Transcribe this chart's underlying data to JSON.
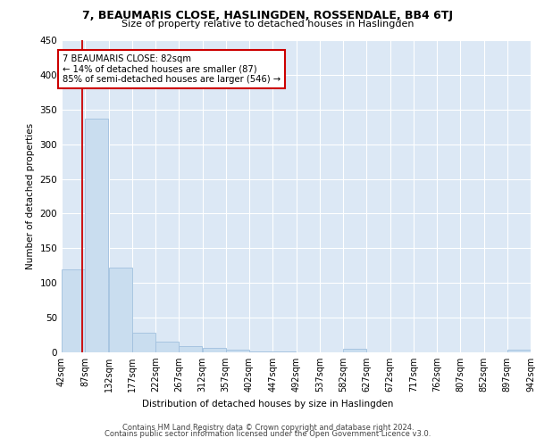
{
  "title": "7, BEAUMARIS CLOSE, HASLINGDEN, ROSSENDALE, BB4 6TJ",
  "subtitle": "Size of property relative to detached houses in Haslingden",
  "xlabel": "Distribution of detached houses by size in Haslingden",
  "ylabel": "Number of detached properties",
  "bar_color": "#c9ddef",
  "bar_edge_color": "#a0c0de",
  "bg_color": "#dce8f5",
  "grid_color": "#ffffff",
  "annotation_text": "7 BEAUMARIS CLOSE: 82sqm\n← 14% of detached houses are smaller (87)\n85% of semi-detached houses are larger (546) →",
  "property_line_x": 82,
  "bin_edges": [
    42,
    87,
    132,
    177,
    222,
    267,
    312,
    357,
    402,
    447,
    492,
    537,
    582,
    627,
    672,
    717,
    762,
    807,
    852,
    897,
    942
  ],
  "bar_heights": [
    120,
    337,
    122,
    28,
    15,
    9,
    6,
    4,
    1,
    1,
    0,
    0,
    5,
    0,
    0,
    0,
    0,
    0,
    0,
    4
  ],
  "ylim": [
    0,
    450
  ],
  "yticks": [
    0,
    50,
    100,
    150,
    200,
    250,
    300,
    350,
    400,
    450
  ],
  "footer_line1": "Contains HM Land Registry data © Crown copyright and database right 2024.",
  "footer_line2": "Contains public sector information licensed under the Open Government Licence v3.0."
}
